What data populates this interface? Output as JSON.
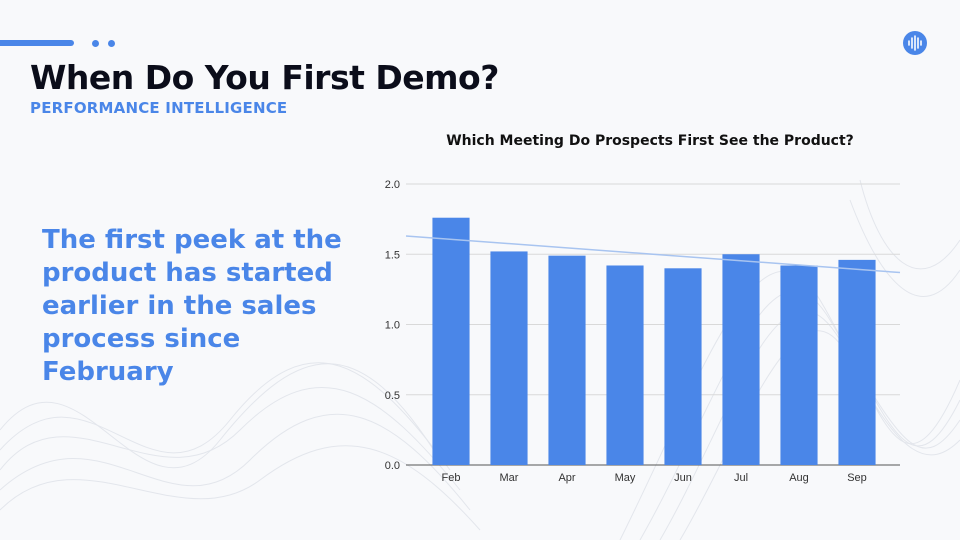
{
  "slide": {
    "title": "When Do You First Demo?",
    "subtitle": "PERFORMANCE INTELLIGENCE",
    "headline": "The first peek at the product has started earlier in the sales process since February",
    "logo_icon": "soundwave-icon",
    "accent_color": "#4a86e8"
  },
  "chart_data": {
    "type": "bar",
    "title": "Which Meeting Do Prospects First See the Product?",
    "categories": [
      "Feb",
      "Mar",
      "Apr",
      "May",
      "Jun",
      "Jul",
      "Aug",
      "Sep"
    ],
    "values": [
      1.76,
      1.52,
      1.49,
      1.42,
      1.4,
      1.5,
      1.42,
      1.46
    ],
    "ylim": [
      0,
      2.0
    ],
    "yticks": [
      "0.0",
      "0.5",
      "1.0",
      "1.5",
      "2.0"
    ],
    "ytick_values": [
      0,
      0.5,
      1.0,
      1.5,
      2.0
    ],
    "trendline": {
      "start": 1.63,
      "end": 1.37
    },
    "grid": true,
    "bar_color": "#4a86e8",
    "trend_color": "#a8c4f0"
  }
}
